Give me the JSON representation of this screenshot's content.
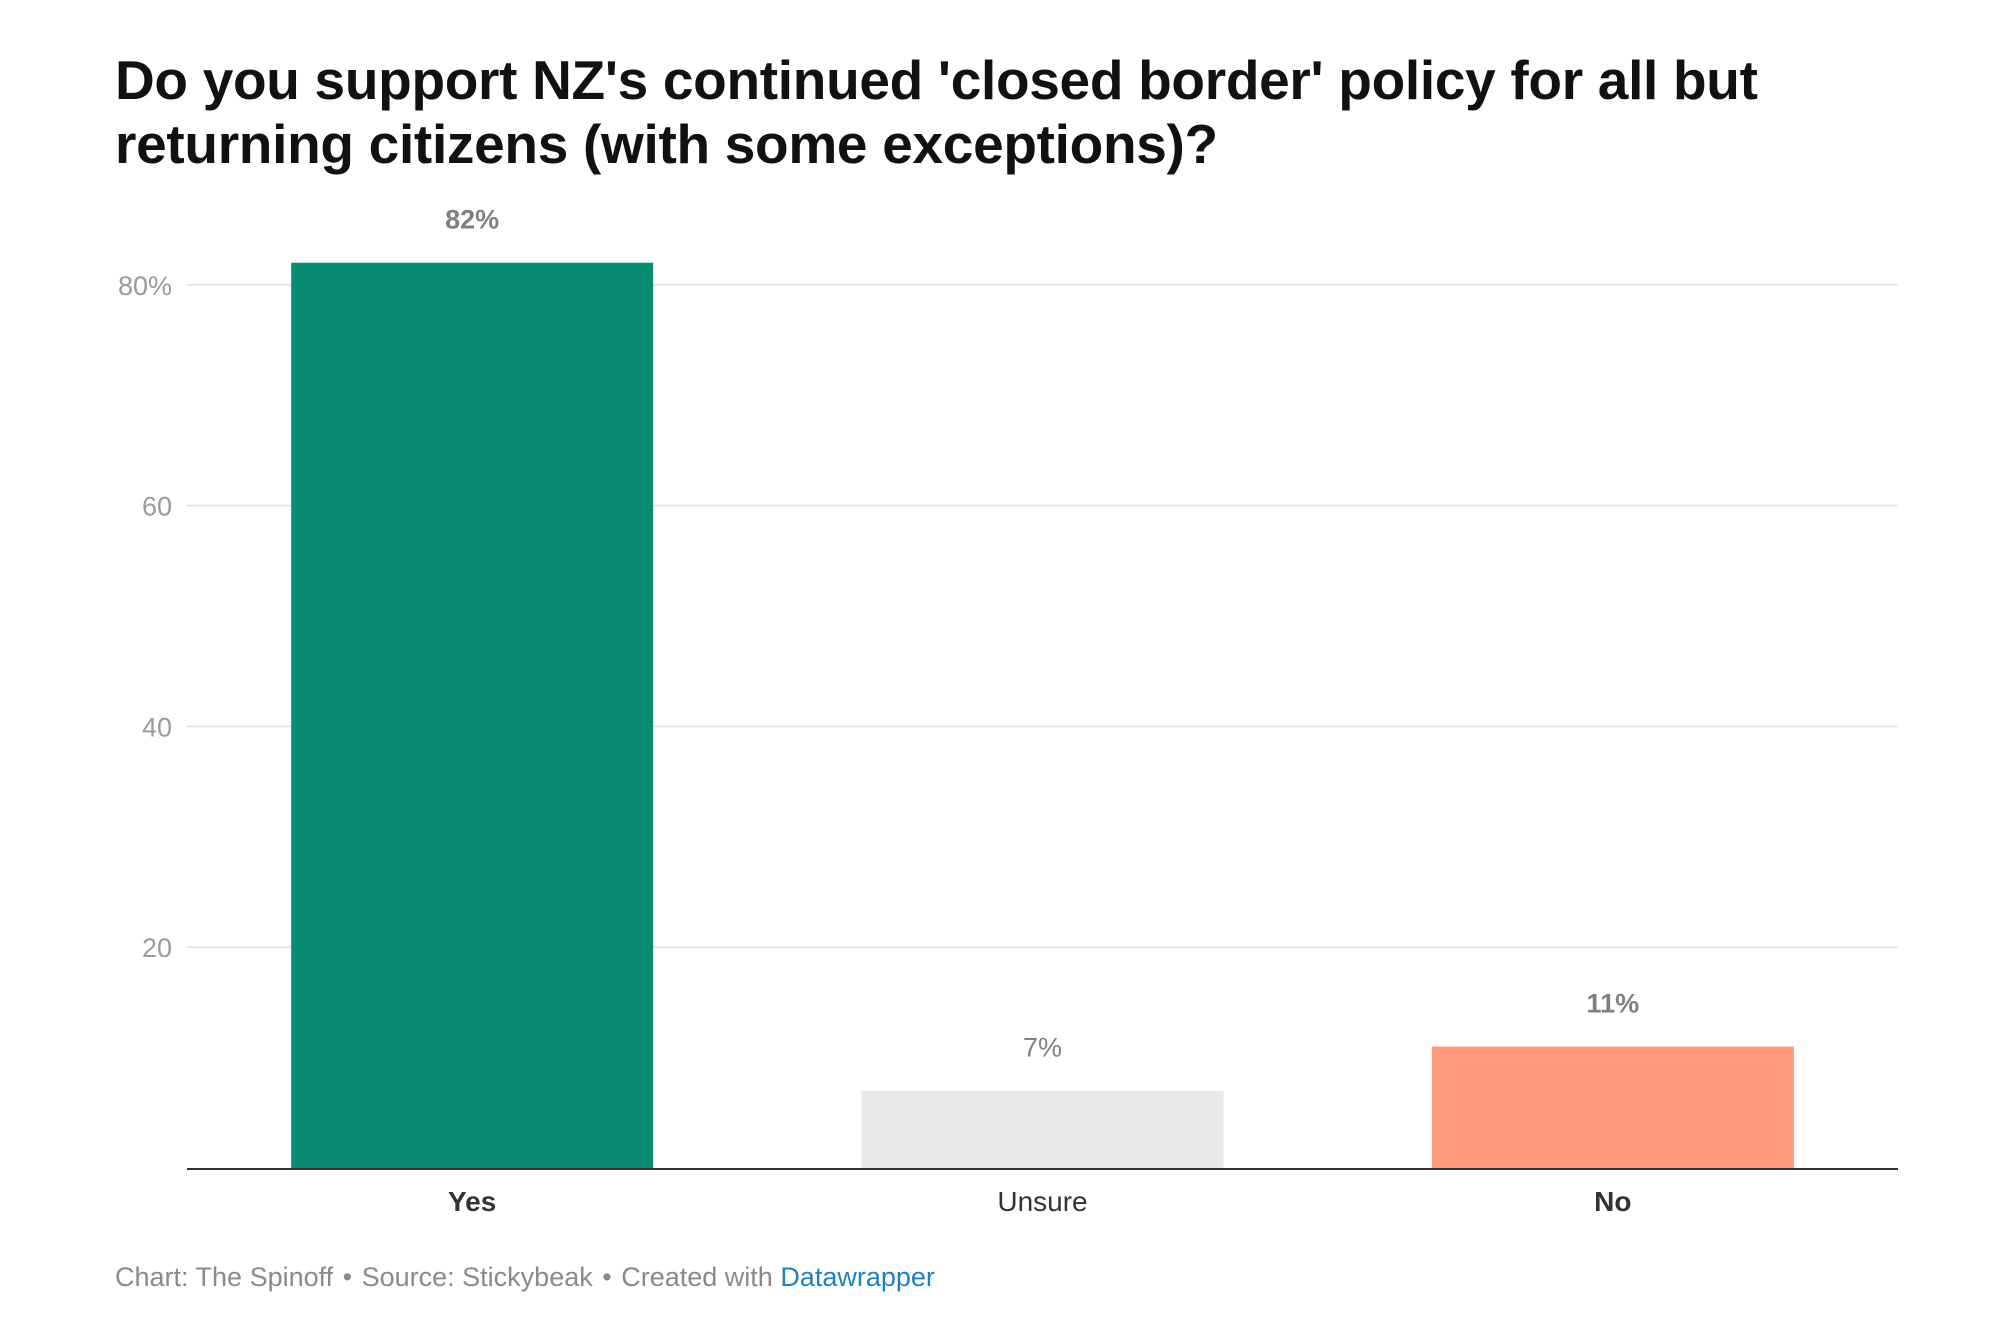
{
  "chart_data": {
    "type": "bar",
    "title": "Do you support NZ's continued 'closed border' policy for all but returning citizens (with some exceptions)?",
    "categories": [
      "Yes",
      "Unsure",
      "No"
    ],
    "values": [
      82,
      7,
      11
    ],
    "value_labels": [
      "82%",
      "7%",
      "11%"
    ],
    "colors": [
      "#0a8c72",
      "#e8e8e8",
      "#fe9a7c"
    ],
    "category_bold": [
      true,
      false,
      true
    ],
    "value_label_bold": [
      true,
      false,
      true
    ],
    "ylim": [
      0,
      80
    ],
    "yticks": [
      20,
      40,
      60,
      80
    ],
    "ytick_labels": [
      "20",
      "40",
      "60",
      "80%"
    ],
    "grid": true,
    "xlabel": "",
    "ylabel": ""
  },
  "footer": {
    "chart_credit": "Chart: The Spinoff",
    "separator": "•",
    "source": "Source: Stickybeak",
    "created_with": "Created with",
    "link_label": "Datawrapper"
  },
  "colors": {
    "grid": "#e6e6e6",
    "axis": "#333333",
    "tick_label": "#9a9a9a",
    "value_label": "#808080",
    "category_label": "#333333"
  }
}
